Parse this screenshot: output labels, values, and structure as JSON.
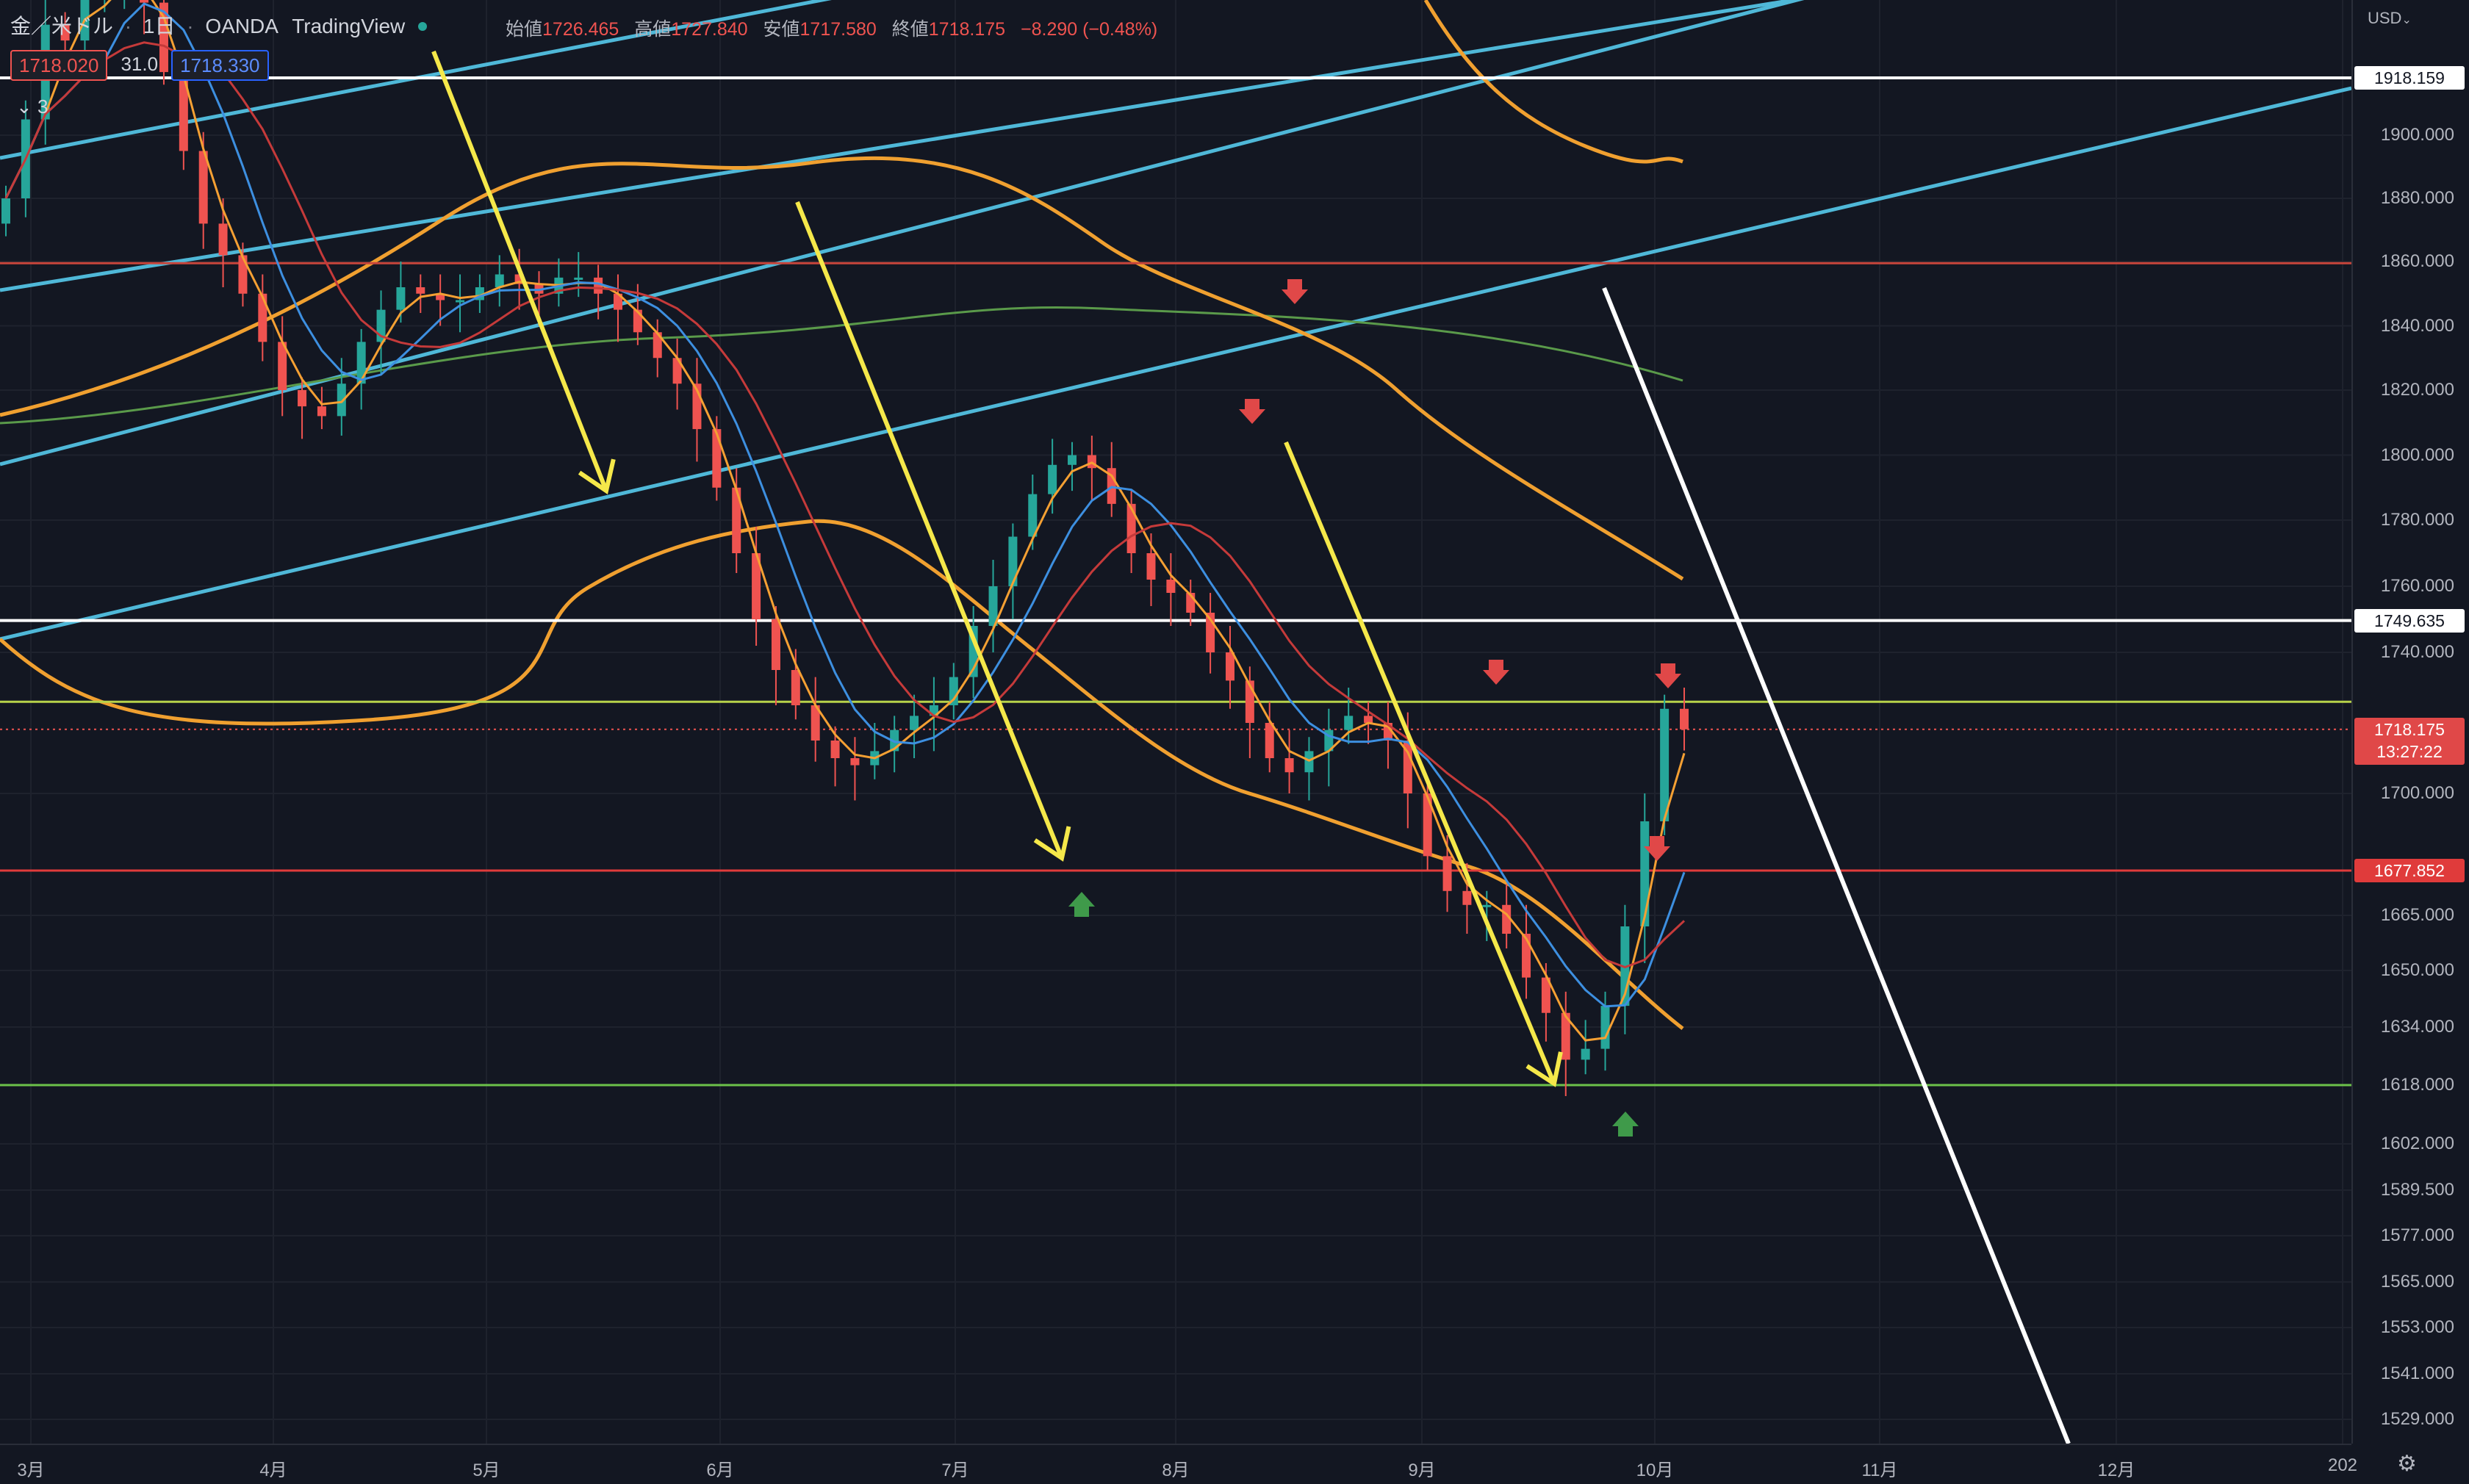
{
  "header": {
    "symbol": "金／米ドル",
    "interval": "1日",
    "broker": "OANDA",
    "platform": "TradingView",
    "open_label": "始値",
    "open_value": "1726.465",
    "high_label": "高値",
    "high_value": "1727.840",
    "low_label": "安値",
    "low_value": "1717.580",
    "close_label": "終値",
    "close_value": "1718.175",
    "change": "−8.290 (−0.48%)"
  },
  "indicator_row": {
    "bid": "1718.020",
    "spread": "31.0",
    "ask": "1718.330",
    "collapsed_count": "3"
  },
  "price_scale": {
    "currency": "USD",
    "ticks": [
      "1900.000",
      "1880.000",
      "1860.000",
      "1840.000",
      "1820.000",
      "1800.000",
      "1780.000",
      "1760.000",
      "1740.000",
      "1700.000",
      "1665.000",
      "1650.000",
      "1634.000",
      "1618.000",
      "1602.000",
      "1589.500",
      "1577.000",
      "1565.000",
      "1553.000",
      "1541.000",
      "1529.000"
    ],
    "level_labels": [
      "1918.159",
      "1749.635",
      "1677.852"
    ],
    "current_price": "1718.175",
    "countdown": "13:27:22"
  },
  "time_axis": {
    "months": [
      "3月",
      "4月",
      "5月",
      "6月",
      "7月",
      "8月",
      "9月",
      "10月",
      "11月",
      "12月",
      "202"
    ]
  },
  "colors": {
    "background": "#131722",
    "up_candle": "#26a69a",
    "down_candle": "#ef5350",
    "channel_line": "#4fb8d8",
    "trend_arrow": "#f5e84a",
    "envelope": "#f0a030",
    "ma_fast": "#f5a033",
    "ma_mid": "#3d8fe0",
    "ma_slow": "#c53a3a",
    "ma_long": "#5a9a4a"
  },
  "chart_data": {
    "type": "candlestick",
    "title": "",
    "xlabel": "",
    "ylabel": "",
    "x_ticks": [
      "3月",
      "4月",
      "5月",
      "6月",
      "7月",
      "8月",
      "9月",
      "10月",
      "11月",
      "12月",
      "202"
    ],
    "y_ticks": [
      1900,
      1880,
      1860,
      1840,
      1820,
      1800,
      1780,
      1760,
      1740,
      1700,
      1665,
      1650,
      1634,
      1618,
      1602,
      1589.5,
      1577,
      1565,
      1553,
      1541,
      1529
    ],
    "horizontal_levels": [
      {
        "price": 1918.159,
        "color": "#ffffff"
      },
      {
        "price": 1859.5,
        "color": "#c8453b"
      },
      {
        "price": 1749.635,
        "color": "#ffffff"
      },
      {
        "price": 1726.0,
        "color": "#b7d24a"
      },
      {
        "price": 1677.852,
        "color": "#e03b3b"
      },
      {
        "price": 1618.0,
        "color": "#6cc24a"
      }
    ],
    "close_series": [
      1880,
      1905,
      1935,
      1930,
      1945,
      1948,
      1950,
      1942,
      1920,
      1895,
      1872,
      1862,
      1850,
      1835,
      1820,
      1815,
      1812,
      1822,
      1835,
      1845,
      1852,
      1850,
      1848,
      1848,
      1852,
      1856,
      1853,
      1850,
      1855,
      1855,
      1850,
      1845,
      1838,
      1830,
      1822,
      1808,
      1790,
      1770,
      1750,
      1735,
      1725,
      1715,
      1710,
      1708,
      1712,
      1718,
      1722,
      1725,
      1733,
      1748,
      1760,
      1775,
      1788,
      1797,
      1800,
      1796,
      1785,
      1770,
      1762,
      1758,
      1752,
      1740,
      1732,
      1720,
      1710,
      1706,
      1712,
      1718,
      1722,
      1720,
      1715,
      1700,
      1682,
      1672,
      1668,
      1668,
      1660,
      1648,
      1638,
      1625,
      1628,
      1640,
      1662,
      1692,
      1724,
      1718.175
    ],
    "current": {
      "open": 1726.465,
      "high": 1727.84,
      "low": 1717.58,
      "close": 1718.175
    }
  }
}
